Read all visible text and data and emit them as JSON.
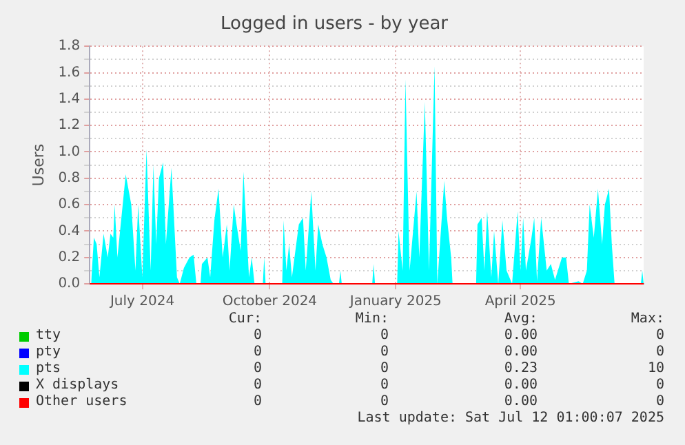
{
  "chart_data": {
    "type": "area",
    "title": "Logged in users - by year",
    "ylabel": "Users",
    "xlim": [
      "2024-06-07",
      "2025-07-12"
    ],
    "xticks": [
      {
        "value": "2024-07-15",
        "label": "July 2024"
      },
      {
        "value": "2024-10-15",
        "label": "October 2024"
      },
      {
        "value": "2025-01-14",
        "label": "January 2025"
      },
      {
        "value": "2025-04-14",
        "label": "April 2025"
      }
    ],
    "ylim": [
      0,
      1.8
    ],
    "yticks": [
      {
        "value": 0,
        "label": "0.0"
      },
      {
        "value": 0.1,
        "label": null
      },
      0.2,
      {
        "value": 0.3,
        "label": null
      },
      0.4,
      {
        "value": 0.5,
        "label": null
      },
      0.6,
      {
        "value": 0.7,
        "label": null
      },
      0.8,
      {
        "value": 0.9,
        "label": null
      },
      {
        "value": 1,
        "label": "1.0"
      },
      {
        "value": 1.1,
        "label": null
      },
      1.2,
      {
        "value": 1.3,
        "label": null
      },
      1.4,
      {
        "value": 1.5,
        "label": null
      },
      1.6,
      {
        "value": 1.7,
        "label": null
      },
      1.8
    ],
    "grid": true,
    "legend": "bottom",
    "series": [
      {
        "name": "tty",
        "color": "#00cc00",
        "type": "line"
      },
      {
        "name": "pty",
        "color": "#0000ff",
        "type": "line"
      },
      {
        "name": "pts",
        "color": "#00ffff",
        "x": [
          "2024-06-08",
          "2024-06-10",
          "2024-06-12",
          "2024-06-14",
          "2024-06-17",
          "2024-06-20",
          "2024-06-22",
          "2024-06-24",
          "2024-06-25",
          "2024-06-27",
          "2024-07-03",
          "2024-07-07",
          "2024-07-10",
          "2024-07-12",
          "2024-07-15",
          "2024-07-18",
          "2024-07-21",
          "2024-07-23",
          "2024-07-25",
          "2024-07-27",
          "2024-07-30",
          "2024-08-01",
          "2024-08-05",
          "2024-08-09",
          "2024-08-11",
          "2024-08-14",
          "2024-08-18",
          "2024-08-21",
          "2024-08-23",
          "2024-08-26",
          "2024-08-27",
          "2024-08-31",
          "2024-09-02",
          "2024-09-05",
          "2024-09-08",
          "2024-09-11",
          "2024-09-14",
          "2024-09-16",
          "2024-09-19",
          "2024-09-21",
          "2024-09-24",
          "2024-09-26",
          "2024-09-30",
          "2024-10-02",
          "2024-10-04",
          "2024-10-10",
          "2024-10-11",
          "2024-10-12",
          "2024-10-24",
          "2024-10-25",
          "2024-10-27",
          "2024-10-29",
          "2024-10-31",
          "2024-11-05",
          "2024-11-08",
          "2024-11-10",
          "2024-11-14",
          "2024-11-17",
          "2024-11-19",
          "2024-11-22",
          "2024-11-25",
          "2024-11-28",
          "2024-11-30",
          "2024-12-04",
          "2024-12-05",
          "2024-12-06",
          "2024-12-28",
          "2024-12-29",
          "2024-12-30",
          "2025-01-15",
          "2025-01-16",
          "2025-01-19",
          "2025-01-21",
          "2025-01-24",
          "2025-01-29",
          "2025-01-31",
          "2025-02-04",
          "2025-02-07",
          "2025-02-11",
          "2025-02-13",
          "2025-02-18",
          "2025-02-20",
          "2025-02-23",
          "2025-02-24",
          "2025-03-13",
          "2025-03-14",
          "2025-03-17",
          "2025-03-19",
          "2025-03-21",
          "2025-03-24",
          "2025-03-26",
          "2025-03-29",
          "2025-04-01",
          "2025-04-04",
          "2025-04-08",
          "2025-04-12",
          "2025-04-14",
          "2025-04-16",
          "2025-04-18",
          "2025-04-22",
          "2025-04-24",
          "2025-04-26",
          "2025-04-29",
          "2025-05-03",
          "2025-05-06",
          "2025-05-09",
          "2025-05-14",
          "2025-05-17",
          "2025-05-19",
          "2025-05-26",
          "2025-05-29",
          "2025-06-01",
          "2025-06-03",
          "2025-06-06",
          "2025-06-09",
          "2025-06-12",
          "2025-06-14",
          "2025-06-17",
          "2025-06-19",
          "2025-06-21",
          "2025-07-10",
          "2025-07-11",
          "2025-07-12"
        ],
        "values": [
          0,
          0.35,
          0.3,
          0.05,
          0.38,
          0.2,
          0.38,
          0.35,
          0.6,
          0.2,
          0.83,
          0.6,
          0.1,
          0.6,
          0.05,
          1.02,
          0.1,
          0.9,
          0.3,
          0.8,
          0.92,
          0.3,
          0.88,
          0.05,
          0,
          0.12,
          0.2,
          0.22,
          0,
          0,
          0.15,
          0.2,
          0.05,
          0.48,
          0.72,
          0.2,
          0.45,
          0.1,
          0.6,
          0.45,
          0.25,
          0.85,
          0.05,
          0.2,
          0,
          0,
          0.2,
          0,
          0,
          0.48,
          0.1,
          0.3,
          0.05,
          0.45,
          0.5,
          0.1,
          0.7,
          0.1,
          0.45,
          0.3,
          0.2,
          0.03,
          0,
          0,
          0.1,
          0,
          0,
          0.15,
          0,
          0,
          0.4,
          0.1,
          1.55,
          0.1,
          0.7,
          0.2,
          1.38,
          0.1,
          1.65,
          0,
          0.78,
          0.5,
          0.2,
          0,
          0,
          0.45,
          0.5,
          0.1,
          0.55,
          0.05,
          0.4,
          0,
          0.48,
          0.1,
          0,
          0.55,
          0.1,
          0.5,
          0.1,
          0.35,
          0.5,
          0.02,
          0.5,
          0.1,
          0.15,
          0.03,
          0.2,
          0.2,
          0,
          0.02,
          0,
          0.1,
          0.6,
          0.35,
          0.72,
          0.3,
          0.6,
          0.72,
          0.3,
          0,
          0,
          0.1,
          0
        ]
      },
      {
        "name": "X displays",
        "color": "#000000",
        "type": "line"
      },
      {
        "name": "Other users",
        "color": "#ff0000",
        "type": "line",
        "x": [
          "2024-06-07",
          "2025-07-12"
        ],
        "values": [
          0,
          0
        ]
      }
    ],
    "annotations": [
      "Cur:",
      "Min:",
      "Avg:",
      "Max:",
      "0",
      "0",
      "0.00",
      "0",
      "0",
      "0",
      "0.00",
      "0",
      "0",
      "0",
      "0.23",
      "10",
      "0",
      "0",
      "0.00",
      "0",
      "0",
      "0",
      "0.00",
      "0",
      "Last update: Sat Jul 12 01:00:07 2025"
    ]
  }
}
